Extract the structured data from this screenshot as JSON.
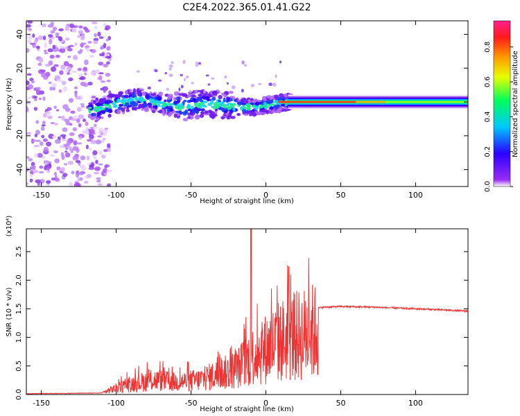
{
  "title": "C2E4.2022.365.01.41.G22",
  "chart_data": [
    {
      "type": "heatmap",
      "name": "spectrogram",
      "xlabel": "Height of straight line (km)",
      "ylabel": "Frequency (Hz)",
      "xlim": [
        -160,
        135
      ],
      "ylim": [
        -50,
        48
      ],
      "xticks": [
        -150,
        -100,
        -50,
        0,
        50,
        100
      ],
      "yticks": [
        -40,
        -20,
        0,
        20,
        40
      ],
      "colorbar": {
        "label": "Normalized spectral amplitude",
        "range": [
          0.0,
          0.95
        ],
        "ticks": [
          "0.0",
          "0.2",
          "0.4",
          "0.6",
          "0.8"
        ],
        "colors": [
          "#ffffff",
          "#9a2cf5",
          "#2b00ff",
          "#00c8ff",
          "#00ff5a",
          "#e8ff00",
          "#ff9a00",
          "#ff1a1a",
          "#ff1f8c"
        ]
      },
      "signal_track": [
        {
          "x": -115,
          "f": -5
        },
        {
          "x": -100,
          "f": -1
        },
        {
          "x": -85,
          "f": 2
        },
        {
          "x": -70,
          "f": -1
        },
        {
          "x": -55,
          "f": -3
        },
        {
          "x": -40,
          "f": -1
        },
        {
          "x": -25,
          "f": -2
        },
        {
          "x": -10,
          "f": -3
        },
        {
          "x": 0,
          "f": -2
        },
        {
          "x": 15,
          "f": 0
        },
        {
          "x": 135,
          "f": 0
        }
      ],
      "noise_region_x": [
        -160,
        -108
      ]
    },
    {
      "type": "line",
      "name": "snr",
      "xlabel": "Height of straight line (km)",
      "ylabel": "SNR (10 * v/v)",
      "yscale_label": "(x10⁴)",
      "xlim": [
        -160,
        135
      ],
      "ylim": [
        0,
        2.9
      ],
      "xticks": [
        -150,
        -100,
        -50,
        0,
        50,
        100
      ],
      "yticks": [
        "0.0",
        "0.5",
        "1.0",
        "1.5",
        "2.0",
        "2.5"
      ],
      "color": "#ee3333",
      "envelope": {
        "x": [
          -160,
          -110,
          -105,
          -90,
          -75,
          -60,
          -45,
          -30,
          -20,
          -10,
          0,
          10,
          20,
          30,
          40,
          50,
          70,
          90,
          110,
          135
        ],
        "y": [
          0.01,
          0.02,
          0.1,
          0.25,
          0.35,
          0.3,
          0.35,
          0.5,
          0.6,
          0.9,
          1.1,
          1.3,
          1.4,
          1.5,
          1.53,
          1.54,
          1.53,
          1.51,
          1.49,
          1.46
        ]
      },
      "spike": {
        "x": -10,
        "y": 2.9
      }
    }
  ]
}
